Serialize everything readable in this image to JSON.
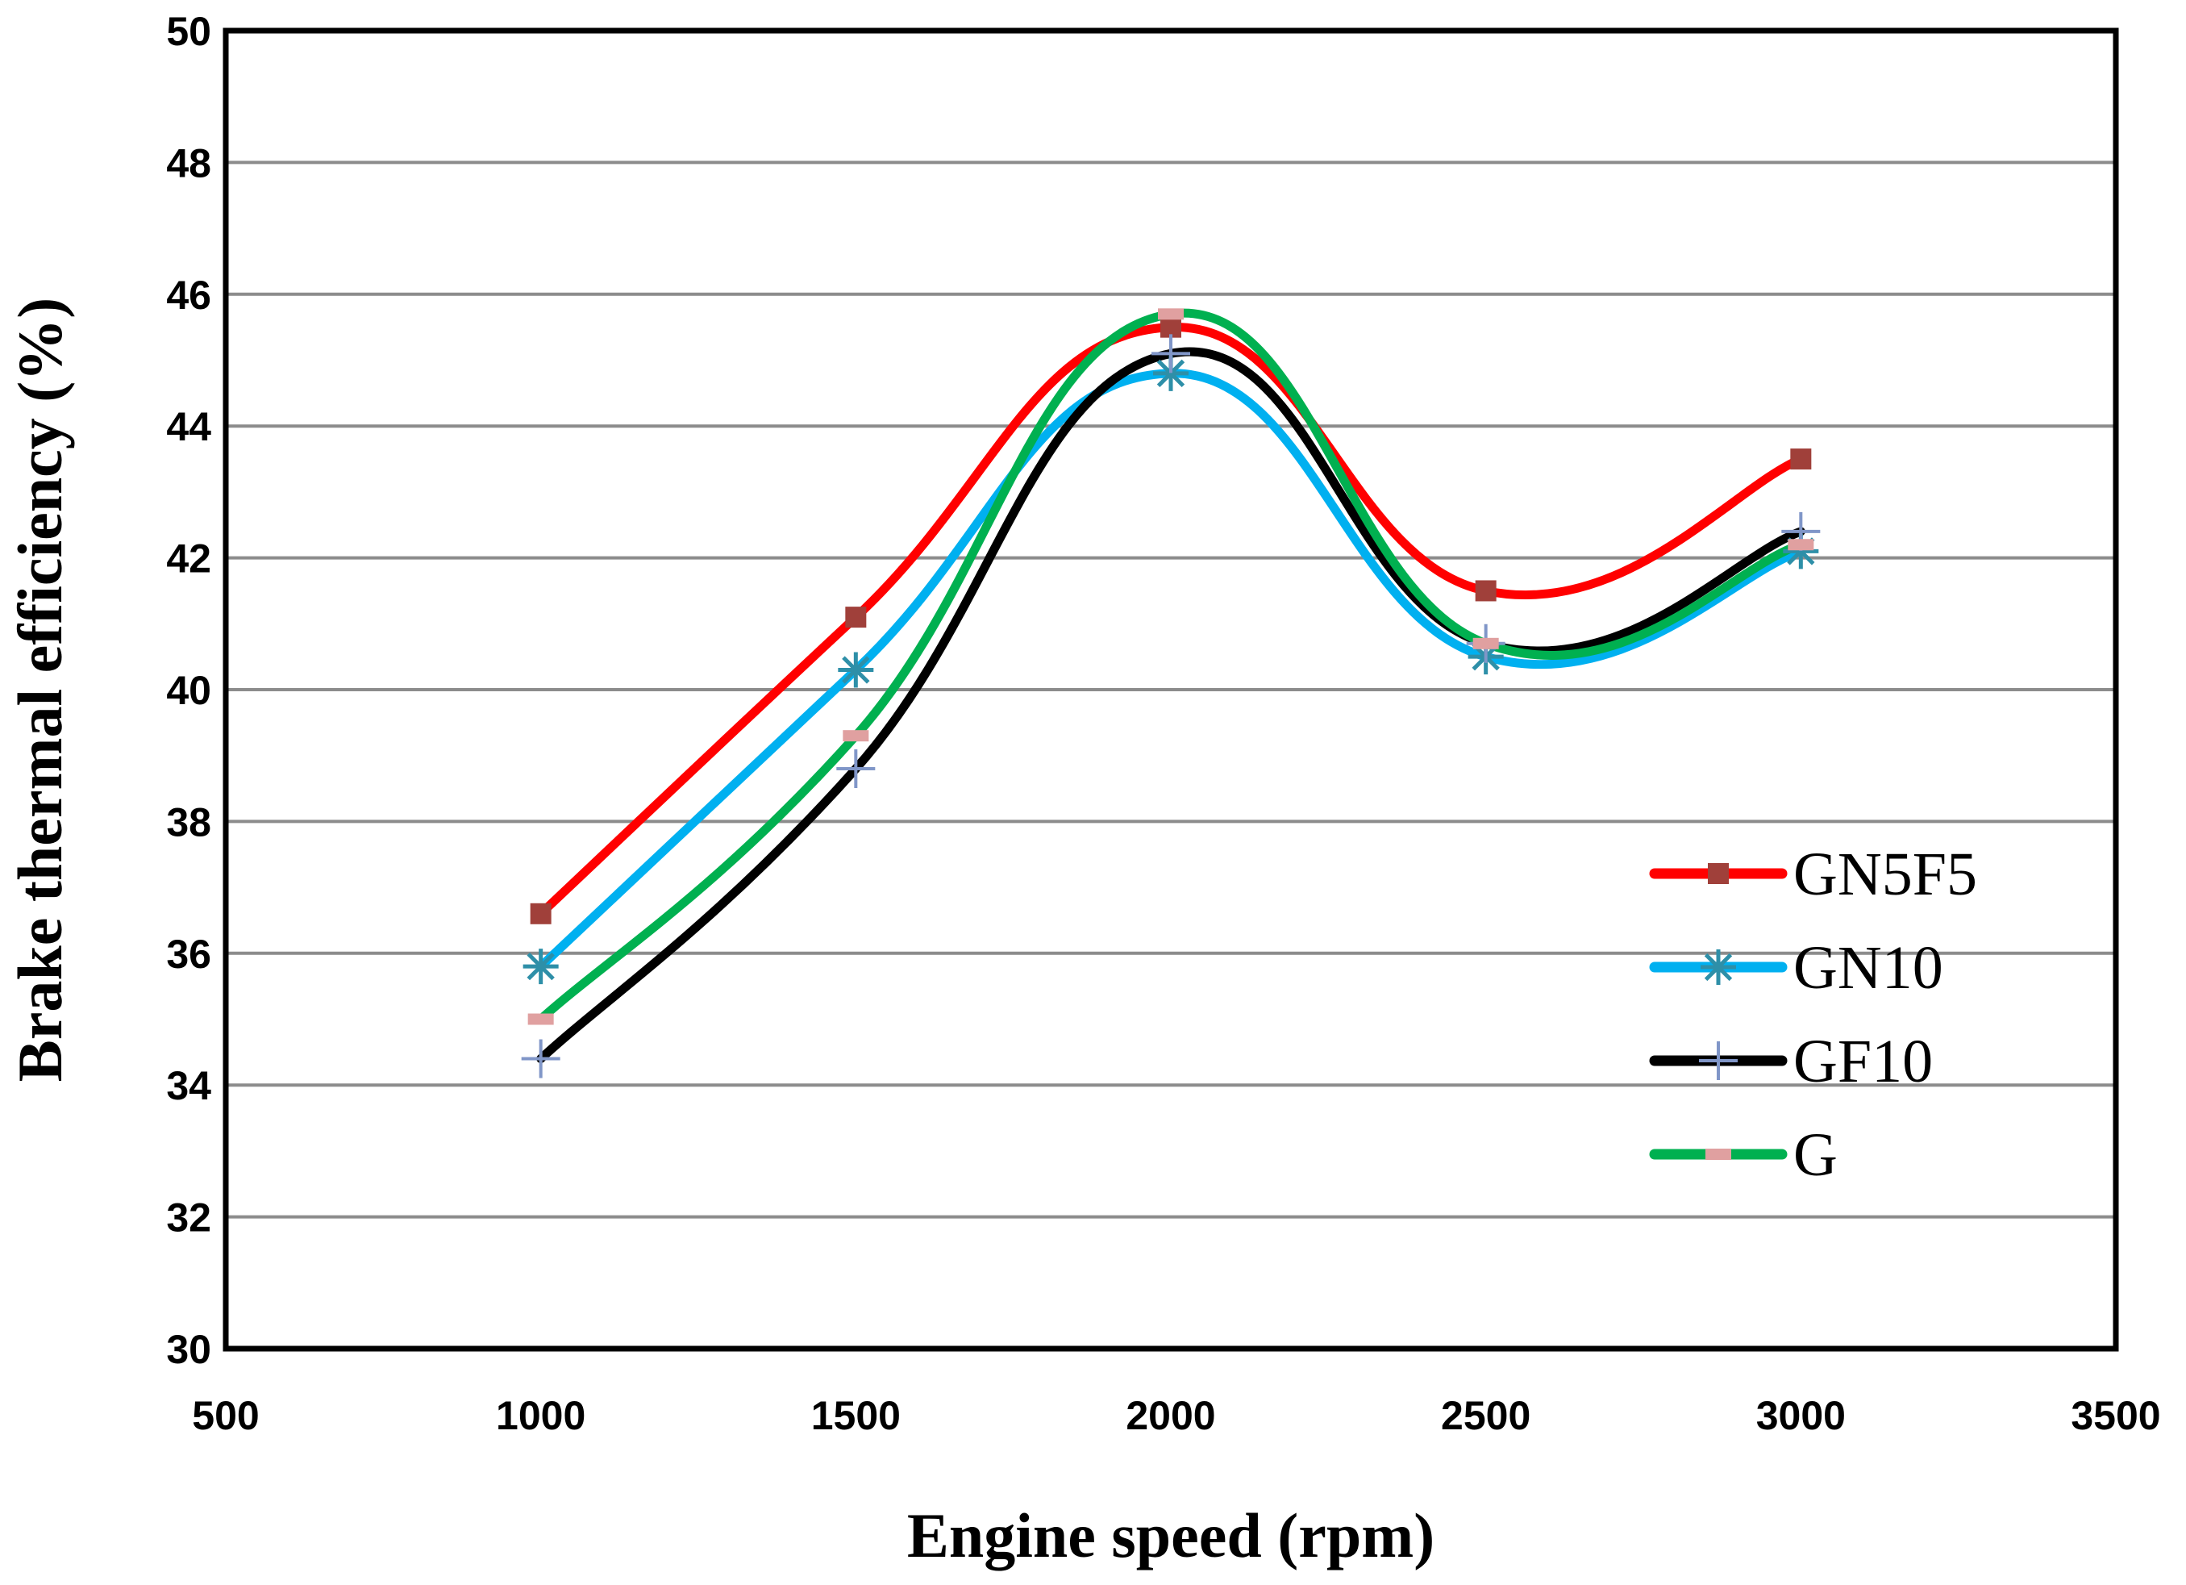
{
  "chart_data": {
    "type": "line",
    "xlabel": "Engine speed (rpm)",
    "ylabel": "Brake thermal efficiency (%)",
    "xlim": [
      500,
      3500
    ],
    "ylim": [
      30,
      50
    ],
    "xticks": [
      500,
      1000,
      1500,
      2000,
      2500,
      3000,
      3500
    ],
    "yticks": [
      30,
      32,
      34,
      36,
      38,
      40,
      42,
      44,
      46,
      48,
      50
    ],
    "grid": "horizontal",
    "legend_position": "right",
    "x": [
      1000,
      1500,
      2000,
      2500,
      3000
    ],
    "series": [
      {
        "name": "GN5F5",
        "color": "#ff0000",
        "marker": "square",
        "marker_color": "#a0403a",
        "values": [
          36.6,
          41.1,
          45.5,
          41.5,
          43.5
        ]
      },
      {
        "name": "GN10",
        "color": "#00b0f0",
        "marker": "asterisk",
        "marker_color": "#2e8fa8",
        "values": [
          35.8,
          40.3,
          44.8,
          40.5,
          42.1
        ]
      },
      {
        "name": "GF10",
        "color": "#000000",
        "marker": "plus",
        "marker_color": "#8096c8",
        "values": [
          34.4,
          38.8,
          45.1,
          40.7,
          42.4
        ]
      },
      {
        "name": "G",
        "color": "#00b050",
        "marker": "dash",
        "marker_color": "#e0a0a0",
        "values": [
          35.0,
          39.3,
          45.7,
          40.7,
          42.2
        ]
      }
    ]
  }
}
